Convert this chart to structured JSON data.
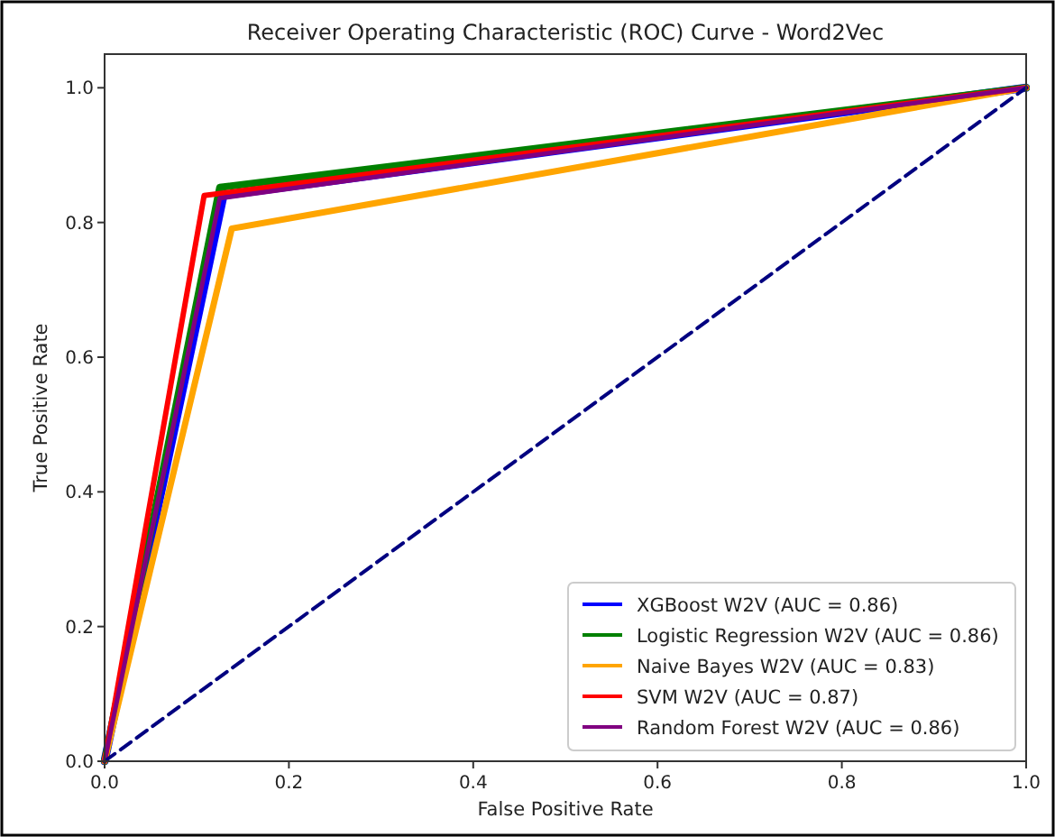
{
  "chart_data": {
    "type": "line",
    "title": "Receiver Operating Characteristic (ROC) Curve - Word2Vec",
    "xlabel": "False Positive Rate",
    "ylabel": "True Positive Rate",
    "xlim": [
      0,
      1
    ],
    "ylim": [
      0,
      1.05
    ],
    "xticks": [
      {
        "value": 0,
        "label": "0.0"
      },
      {
        "value": 0.2,
        "label": "0.2"
      },
      {
        "value": 0.4,
        "label": "0.4"
      },
      {
        "value": 0.6,
        "label": "0.6"
      },
      {
        "value": 0.8,
        "label": "0.8"
      },
      {
        "value": 1,
        "label": "1.0"
      }
    ],
    "yticks": [
      {
        "value": 0,
        "label": "0.0"
      },
      {
        "value": 0.2,
        "label": "0.2"
      },
      {
        "value": 0.4,
        "label": "0.4"
      },
      {
        "value": 0.6,
        "label": "0.6"
      },
      {
        "value": 0.8,
        "label": "0.8"
      },
      {
        "value": 1,
        "label": "1.0"
      }
    ],
    "legend": "bottom right",
    "grid": false,
    "marker": "none",
    "series": [
      {
        "name": "XGBoost W2V (AUC = 0.86)",
        "color": "#0000ff",
        "x": [
          0,
          0.129,
          1
        ],
        "values": [
          0,
          0.84,
          1
        ]
      },
      {
        "name": "Logistic Regression W2V (AUC = 0.86)",
        "color": "#008000",
        "x": [
          0,
          0.125,
          1
        ],
        "values": [
          0,
          0.852,
          1
        ]
      },
      {
        "name": "Naive Bayes W2V (AUC = 0.83)",
        "color": "#ffa500",
        "x": [
          0,
          0.138,
          1
        ],
        "values": [
          0,
          0.791,
          1
        ]
      },
      {
        "name": "SVM W2V (AUC = 0.87)",
        "color": "#ff0000",
        "x": [
          0,
          0.108,
          1
        ],
        "values": [
          0,
          0.84,
          1
        ]
      },
      {
        "name": "Random Forest W2V (AUC = 0.86)",
        "color": "#800080",
        "x": [
          0,
          0.125,
          1
        ],
        "values": [
          0,
          0.836,
          1
        ]
      },
      {
        "color": "#000080",
        "x": [
          0,
          1
        ],
        "values": [
          0,
          1
        ],
        "line_style": "dashed"
      }
    ]
  }
}
